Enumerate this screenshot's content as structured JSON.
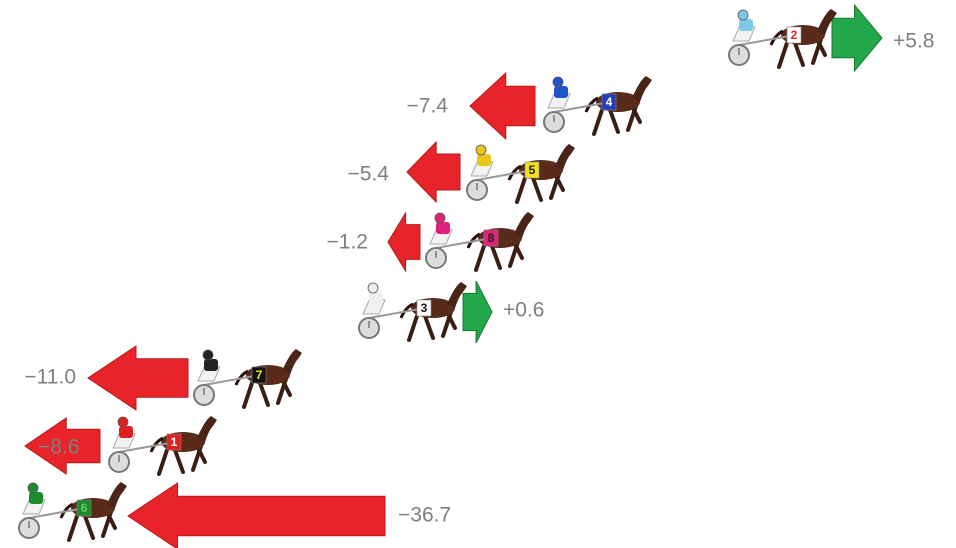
{
  "entries": [
    {
      "number": "2",
      "change": "+5.8"
    },
    {
      "number": "4",
      "change": "−7.4"
    },
    {
      "number": "5",
      "change": "−5.4"
    },
    {
      "number": "8",
      "change": "−1.2"
    },
    {
      "number": "3",
      "change": "+0.6"
    },
    {
      "number": "7",
      "change": "−11.0"
    },
    {
      "number": "1",
      "change": "−8.6"
    },
    {
      "number": "6",
      "change": "−36.7"
    }
  ]
}
